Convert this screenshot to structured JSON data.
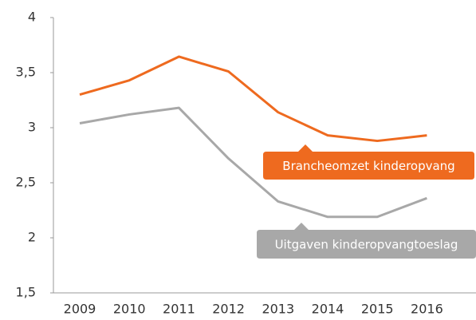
{
  "chart_data": {
    "type": "line",
    "categories": [
      "2009",
      "2010",
      "2011",
      "2012",
      "2013",
      "2014",
      "2015",
      "2016"
    ],
    "series": [
      {
        "name": "Brancheomzet kinderopvang",
        "color": "#ee6a1f",
        "values": [
          3.3,
          3.43,
          3.645,
          3.51,
          3.14,
          2.93,
          2.88,
          2.93
        ]
      },
      {
        "name": "Uitgaven kinderopvangtoeslag",
        "color": "#a8a8a8",
        "values": [
          3.04,
          3.12,
          3.18,
          2.72,
          2.33,
          2.19,
          2.19,
          2.36
        ]
      }
    ],
    "ylim": [
      1.5,
      4
    ],
    "yticks": [
      {
        "value": 1.5,
        "label": "1,5"
      },
      2,
      {
        "value": 2.5,
        "label": "2,5"
      },
      3,
      {
        "value": 3.5,
        "label": "3,5"
      },
      4
    ],
    "grid": false
  }
}
